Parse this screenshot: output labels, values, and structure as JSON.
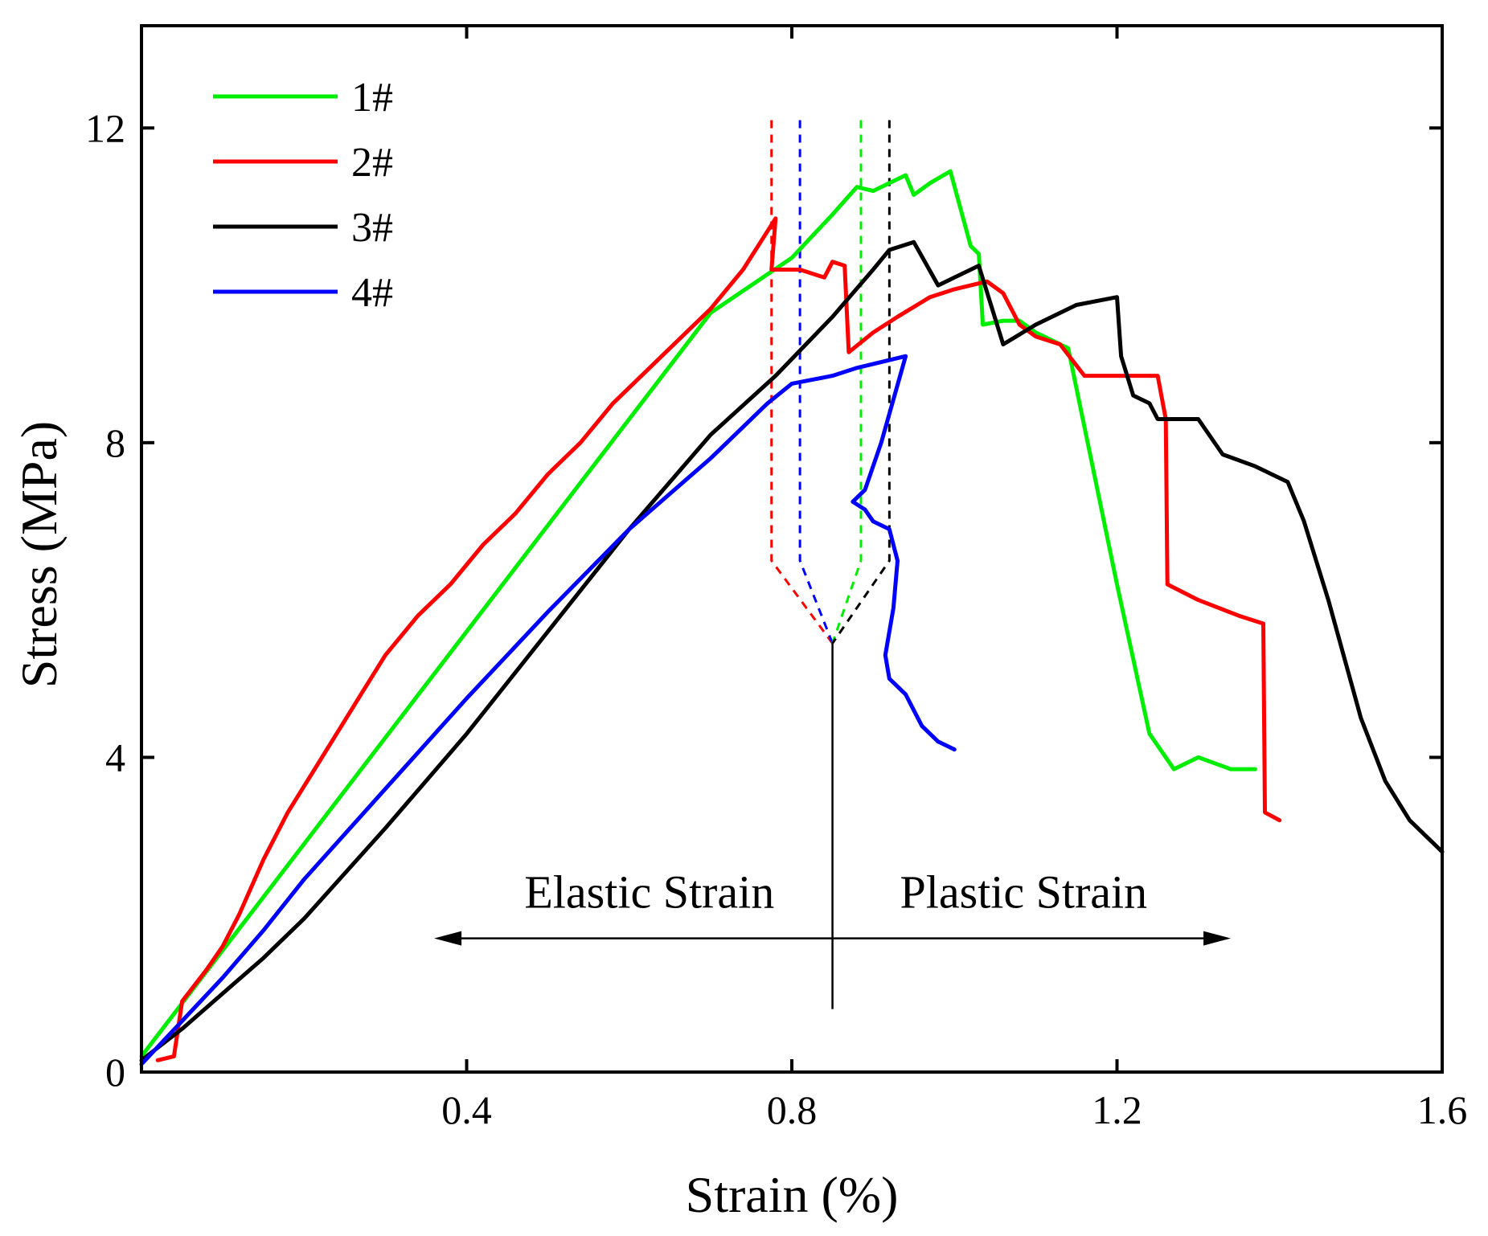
{
  "chart_data": {
    "type": "line",
    "xlabel": "Strain (%)",
    "ylabel": "Stress (MPa)",
    "xlim": [
      0,
      1.6
    ],
    "ylim": [
      0,
      13.3
    ],
    "x_ticks": [
      0.4,
      0.8,
      1.2,
      1.6
    ],
    "x_tick_labels": [
      "0.4",
      "0.8",
      "1.2",
      "1.6"
    ],
    "y_ticks": [
      0,
      4,
      8,
      12
    ],
    "y_tick_labels": [
      "0",
      "4",
      "8",
      "12"
    ],
    "legend_position": "top-left",
    "series": [
      {
        "name": "1#",
        "color": "#00ee00",
        "points": [
          [
            0.0,
            0.2
          ],
          [
            0.1,
            1.55
          ],
          [
            0.2,
            2.9
          ],
          [
            0.3,
            4.25
          ],
          [
            0.4,
            5.6
          ],
          [
            0.5,
            6.95
          ],
          [
            0.6,
            8.3
          ],
          [
            0.7,
            9.65
          ],
          [
            0.8,
            10.35
          ],
          [
            0.85,
            10.9
          ],
          [
            0.88,
            11.25
          ],
          [
            0.9,
            11.2
          ],
          [
            0.94,
            11.4
          ],
          [
            0.95,
            11.15
          ],
          [
            0.97,
            11.3
          ],
          [
            0.995,
            11.45
          ],
          [
            1.02,
            10.5
          ],
          [
            1.03,
            10.4
          ],
          [
            1.035,
            9.5
          ],
          [
            1.06,
            9.55
          ],
          [
            1.08,
            9.55
          ],
          [
            1.1,
            9.4
          ],
          [
            1.14,
            9.2
          ],
          [
            1.16,
            8.2
          ],
          [
            1.2,
            6.2
          ],
          [
            1.24,
            4.3
          ],
          [
            1.27,
            3.85
          ],
          [
            1.3,
            4.0
          ],
          [
            1.34,
            3.85
          ],
          [
            1.37,
            3.85
          ]
        ]
      },
      {
        "name": "2#",
        "color": "#ff0000",
        "points": [
          [
            0.02,
            0.15
          ],
          [
            0.04,
            0.2
          ],
          [
            0.05,
            0.9
          ],
          [
            0.08,
            1.3
          ],
          [
            0.1,
            1.6
          ],
          [
            0.12,
            2.0
          ],
          [
            0.15,
            2.7
          ],
          [
            0.18,
            3.3
          ],
          [
            0.21,
            3.8
          ],
          [
            0.24,
            4.3
          ],
          [
            0.27,
            4.8
          ],
          [
            0.3,
            5.3
          ],
          [
            0.34,
            5.8
          ],
          [
            0.38,
            6.2
          ],
          [
            0.42,
            6.7
          ],
          [
            0.46,
            7.1
          ],
          [
            0.5,
            7.6
          ],
          [
            0.54,
            8.0
          ],
          [
            0.58,
            8.5
          ],
          [
            0.62,
            8.9
          ],
          [
            0.66,
            9.3
          ],
          [
            0.7,
            9.7
          ],
          [
            0.74,
            10.2
          ],
          [
            0.78,
            10.85
          ],
          [
            0.775,
            10.2
          ],
          [
            0.81,
            10.2
          ],
          [
            0.84,
            10.1
          ],
          [
            0.85,
            10.3
          ],
          [
            0.865,
            10.25
          ],
          [
            0.87,
            9.15
          ],
          [
            0.9,
            9.4
          ],
          [
            0.93,
            9.6
          ],
          [
            0.97,
            9.85
          ],
          [
            1.0,
            9.95
          ],
          [
            1.04,
            10.05
          ],
          [
            1.06,
            9.9
          ],
          [
            1.08,
            9.5
          ],
          [
            1.1,
            9.35
          ],
          [
            1.13,
            9.25
          ],
          [
            1.16,
            8.85
          ],
          [
            1.2,
            8.85
          ],
          [
            1.25,
            8.85
          ],
          [
            1.26,
            8.3
          ],
          [
            1.262,
            6.2
          ],
          [
            1.3,
            6.0
          ],
          [
            1.35,
            5.8
          ],
          [
            1.38,
            5.7
          ],
          [
            1.382,
            3.3
          ],
          [
            1.4,
            3.2
          ]
        ]
      },
      {
        "name": "3#",
        "color": "#000000",
        "points": [
          [
            0.0,
            0.15
          ],
          [
            0.05,
            0.55
          ],
          [
            0.1,
            1.0
          ],
          [
            0.15,
            1.45
          ],
          [
            0.2,
            1.95
          ],
          [
            0.3,
            3.1
          ],
          [
            0.4,
            4.3
          ],
          [
            0.5,
            5.6
          ],
          [
            0.6,
            6.9
          ],
          [
            0.7,
            8.1
          ],
          [
            0.78,
            8.85
          ],
          [
            0.85,
            9.6
          ],
          [
            0.9,
            10.2
          ],
          [
            0.92,
            10.45
          ],
          [
            0.95,
            10.55
          ],
          [
            0.98,
            10.0
          ],
          [
            1.0,
            10.1
          ],
          [
            1.03,
            10.25
          ],
          [
            1.06,
            9.25
          ],
          [
            1.1,
            9.5
          ],
          [
            1.15,
            9.75
          ],
          [
            1.2,
            9.85
          ],
          [
            1.205,
            9.1
          ],
          [
            1.22,
            8.6
          ],
          [
            1.24,
            8.5
          ],
          [
            1.25,
            8.3
          ],
          [
            1.3,
            8.3
          ],
          [
            1.33,
            7.85
          ],
          [
            1.37,
            7.7
          ],
          [
            1.41,
            7.5
          ],
          [
            1.43,
            7.0
          ],
          [
            1.46,
            6.0
          ],
          [
            1.5,
            4.5
          ],
          [
            1.53,
            3.7
          ],
          [
            1.56,
            3.2
          ],
          [
            1.6,
            2.8
          ]
        ]
      },
      {
        "name": "4#",
        "color": "#0000ff",
        "points": [
          [
            0.0,
            0.1
          ],
          [
            0.05,
            0.65
          ],
          [
            0.1,
            1.2
          ],
          [
            0.15,
            1.8
          ],
          [
            0.2,
            2.45
          ],
          [
            0.3,
            3.6
          ],
          [
            0.4,
            4.75
          ],
          [
            0.5,
            5.85
          ],
          [
            0.6,
            6.9
          ],
          [
            0.7,
            7.8
          ],
          [
            0.77,
            8.5
          ],
          [
            0.8,
            8.75
          ],
          [
            0.85,
            8.85
          ],
          [
            0.88,
            8.95
          ],
          [
            0.9,
            9.0
          ],
          [
            0.94,
            9.1
          ],
          [
            0.91,
            8.0
          ],
          [
            0.89,
            7.4
          ],
          [
            0.875,
            7.25
          ],
          [
            0.89,
            7.15
          ],
          [
            0.9,
            7.0
          ],
          [
            0.92,
            6.9
          ],
          [
            0.93,
            6.5
          ],
          [
            0.925,
            5.9
          ],
          [
            0.915,
            5.3
          ],
          [
            0.92,
            5.0
          ],
          [
            0.94,
            4.8
          ],
          [
            0.96,
            4.4
          ],
          [
            0.98,
            4.2
          ],
          [
            1.0,
            4.1
          ]
        ]
      }
    ],
    "annotations": {
      "elastic_label": "Elastic Strain",
      "plastic_label": "Plastic Strain",
      "center_strain": 0.85,
      "arrow_y": 1.7,
      "arrow_left_x": 0.36,
      "arrow_right_x": 1.34,
      "vline_y_range": [
        0.8,
        5.45
      ],
      "guides": [
        {
          "series": "2#",
          "color": "#ff0000",
          "x": 0.775,
          "y_top": 12.1,
          "y_bottom": 6.5,
          "apex_y": 5.45
        },
        {
          "series": "4#",
          "color": "#0000ff",
          "x": 0.81,
          "y_top": 12.1,
          "y_bottom": 6.5,
          "apex_y": 5.45
        },
        {
          "series": "1#",
          "color": "#00ee00",
          "x": 0.885,
          "y_top": 12.1,
          "y_bottom": 6.5,
          "apex_y": 5.45
        },
        {
          "series": "3#",
          "color": "#000000",
          "x": 0.92,
          "y_top": 12.1,
          "y_bottom": 6.5,
          "apex_y": 5.45
        }
      ]
    }
  }
}
